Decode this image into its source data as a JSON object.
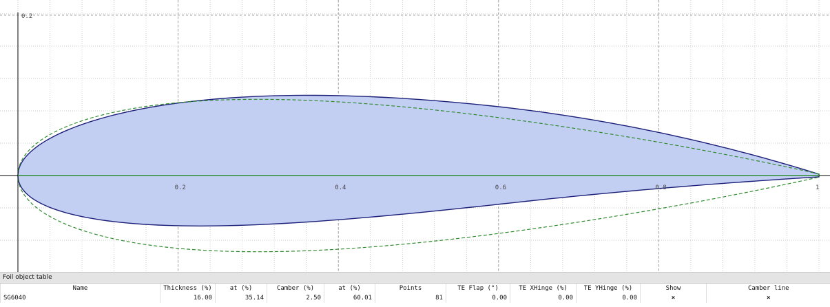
{
  "plot": {
    "y_axis_label": "0.2",
    "x_tick_labels": [
      "0.2",
      "0.4",
      "0.6",
      "0.8",
      "1"
    ],
    "colors": {
      "background": "#ffffff",
      "major_grid": "#888888",
      "minor_grid": "#b8b8b8",
      "axis": "#000000",
      "foil_fill": "#c3cef3",
      "foil_outline": "#1c1f78",
      "reference_outline": "#2e8b2e",
      "camber_line": "#2e8b2e"
    }
  },
  "table": {
    "title": "Foil object table",
    "columns": [
      "Name",
      "Thickness (%)",
      "at (%)",
      "Camber (%)",
      "at (%)",
      "Points",
      "TE Flap (°)",
      "TE XHinge (%)",
      "TE YHinge (%)",
      "Show",
      "Camber line"
    ],
    "rows": [
      {
        "name": "SG6040",
        "thickness": "16.00",
        "thickness_at": "35.14",
        "camber": "2.50",
        "camber_at": "60.01",
        "points": "81",
        "te_flap": "0.00",
        "te_xhinge": "0.00",
        "te_yhinge": "0.00",
        "show": "×",
        "camber_line": "×"
      }
    ]
  }
}
